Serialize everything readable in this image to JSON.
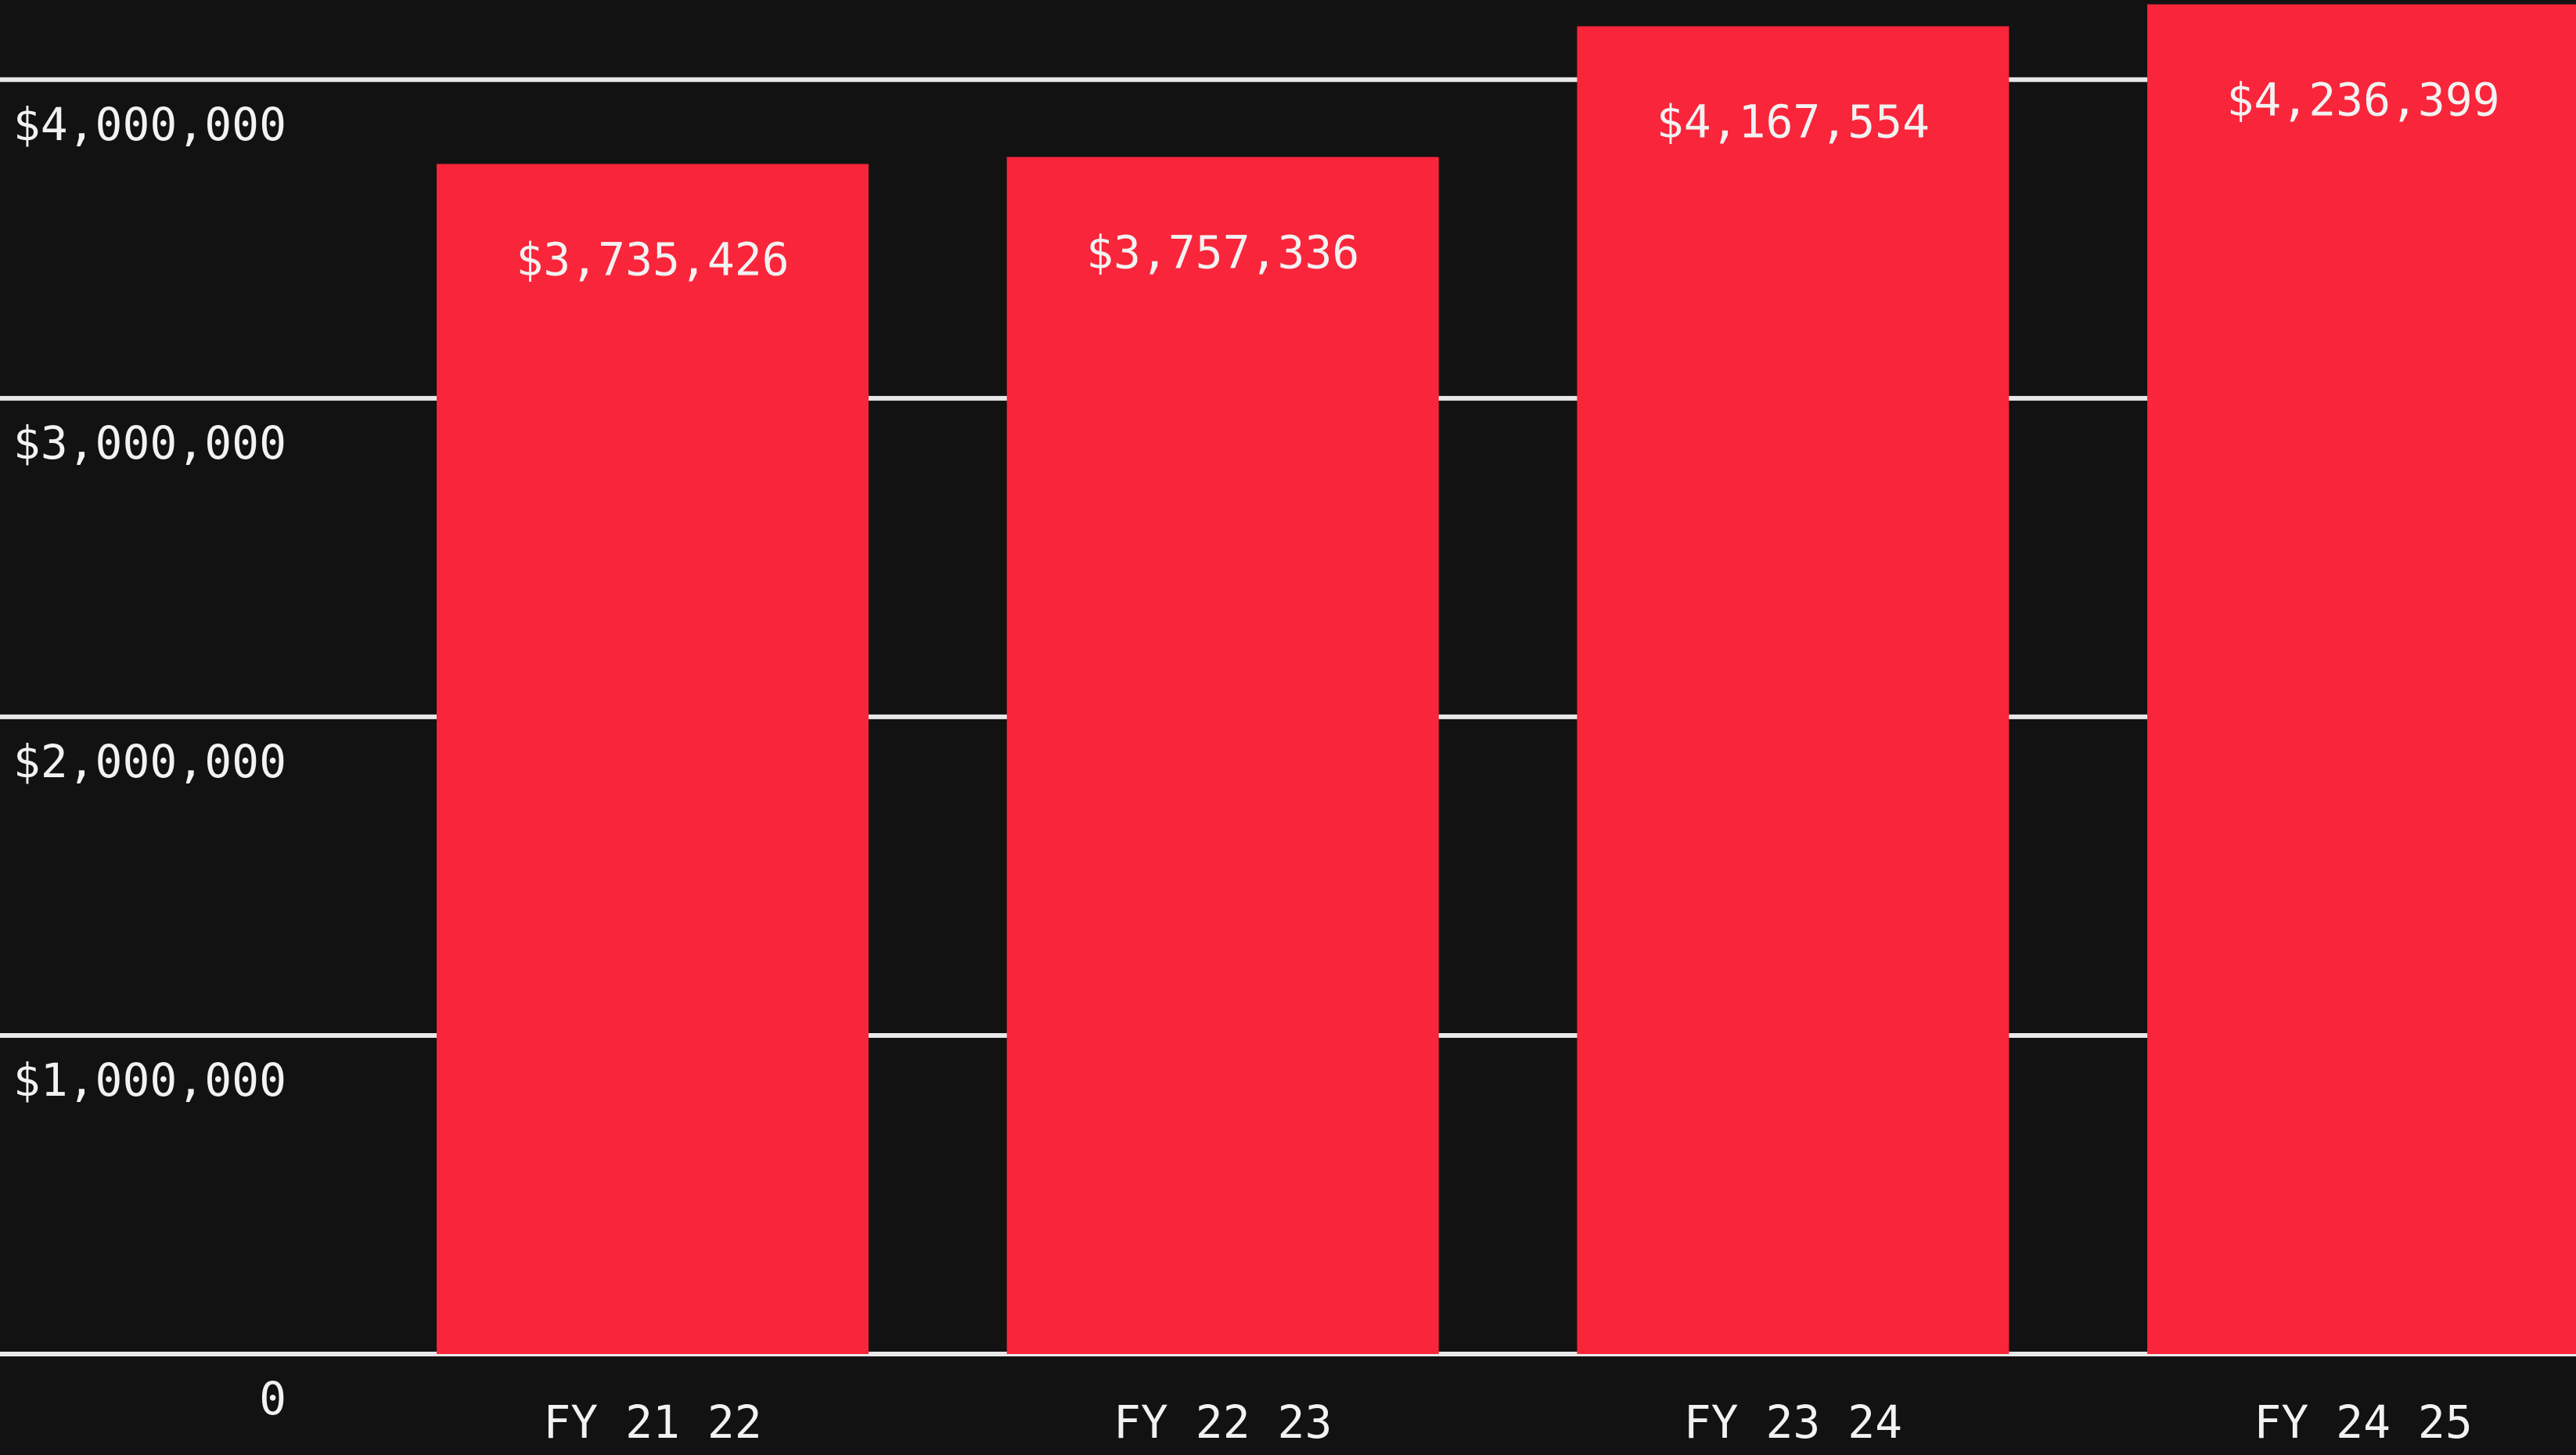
{
  "chart_data": {
    "type": "bar",
    "categories": [
      "FY 21 22",
      "FY 22 23",
      "FY 23 24",
      "FY 24 25"
    ],
    "values": [
      3735426,
      3757336,
      4167554,
      4236399
    ],
    "value_labels": [
      "$3,735,426",
      "$3,757,336",
      "$4,167,554",
      "$4,236,399"
    ],
    "color": "#f9253a",
    "ylim": [
      0,
      4250000
    ],
    "yticks": [
      0,
      {
        "value": 1000000,
        "label": "$1,000,000"
      },
      {
        "value": 2000000,
        "label": "$2,000,000"
      },
      {
        "value": 3000000,
        "label": "$3,000,000"
      },
      {
        "value": 4000000,
        "label": "$4,000,000"
      }
    ],
    "grid": true
  }
}
